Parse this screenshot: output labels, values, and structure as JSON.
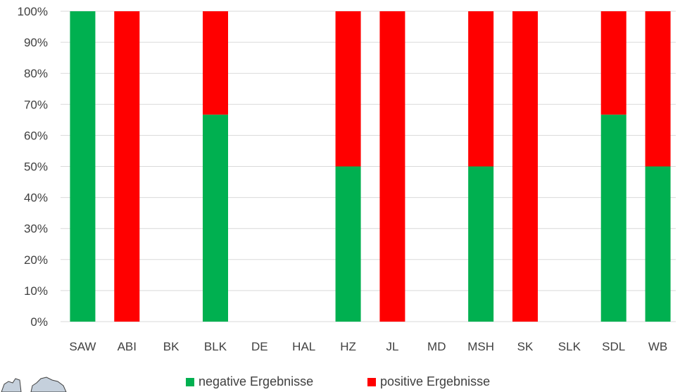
{
  "chart_data": {
    "type": "bar",
    "stacked": true,
    "percent": true,
    "categories": [
      "SAW",
      "ABI",
      "BK",
      "BLK",
      "DE",
      "HAL",
      "HZ",
      "JL",
      "MD",
      "MSH",
      "SK",
      "SLK",
      "SDL",
      "WB"
    ],
    "series": [
      {
        "name": "negative Ergebnisse",
        "color": "#00b050",
        "values": [
          100,
          0,
          0,
          66.7,
          0,
          0,
          50,
          0,
          0,
          50,
          0,
          0,
          66.7,
          50
        ]
      },
      {
        "name": "positive Ergebnisse",
        "color": "#ff0000",
        "values": [
          0,
          100,
          0,
          33.3,
          0,
          0,
          50,
          100,
          0,
          50,
          100,
          0,
          33.3,
          50
        ]
      }
    ],
    "yticks": [
      "0%",
      "10%",
      "20%",
      "30%",
      "40%",
      "50%",
      "60%",
      "70%",
      "80%",
      "90%",
      "100%"
    ],
    "ylim": [
      0,
      100
    ],
    "grid": true,
    "legend_position": "bottom"
  }
}
